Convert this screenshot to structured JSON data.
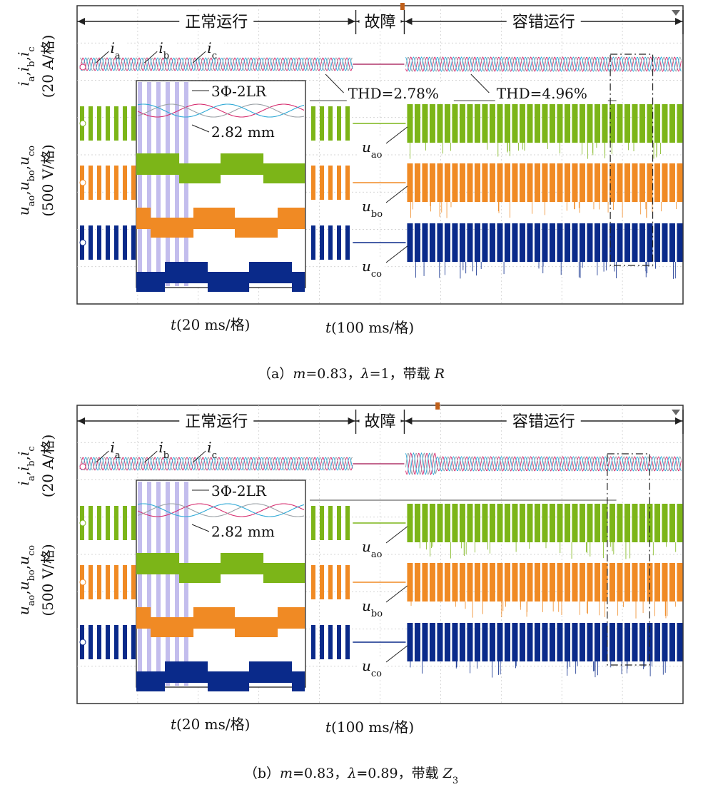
{
  "chart_data": [
    {
      "type": "line",
      "panel_label": "（a）",
      "caption": "m=0.83，λ=1，带载 R",
      "caption_parts": {
        "m": "0.83",
        "lambda": "1",
        "load_prefix": "带载",
        "load": "R",
        "load_sub": ""
      },
      "segments": [
        {
          "label": "正常运行",
          "x0": 0,
          "x1": 0.46
        },
        {
          "label": "故障",
          "x0": 0.46,
          "x1": 0.54
        },
        {
          "label": "容错运行",
          "x0": 0.54,
          "x1": 1.0
        }
      ],
      "trigger_x": 0.537,
      "time_scale_main": "t(100 ms/格)",
      "time_scale_inset": "t(20 ms/格)",
      "current_scale": "(20 A/格)",
      "voltage_scale": "(500 V/格)",
      "current_axis_label": "ia,ib,ic",
      "voltage_axis_label": "uao,ubo,uco",
      "series": [
        {
          "name": "ia",
          "color": "#d62d6f",
          "kind": "current"
        },
        {
          "name": "ib",
          "color": "#9aa0a6",
          "kind": "current"
        },
        {
          "name": "ic",
          "color": "#2fa9d6",
          "kind": "current"
        },
        {
          "name": "uao",
          "color": "#7cb518",
          "kind": "voltage"
        },
        {
          "name": "ubo",
          "color": "#f08a24",
          "kind": "voltage"
        },
        {
          "name": "uco",
          "color": "#0a2a8a",
          "kind": "voltage"
        }
      ],
      "annotations": {
        "thd_normal": "THD=2.78%",
        "thd_fault_tolerant": "THD=4.96%",
        "inset_top": "3Φ-2LR",
        "inset_mid": "2.82 mm"
      },
      "fault_extent": [
        0.455,
        0.54
      ],
      "zoom_box_x": [
        0.88,
        0.95
      ]
    },
    {
      "type": "line",
      "panel_label": "（b）",
      "caption": "m=0.83，λ=0.89，带载 Z3",
      "caption_parts": {
        "m": "0.83",
        "lambda": "0.89",
        "load_prefix": "带载",
        "load": "Z",
        "load_sub": "3"
      },
      "segments": [
        {
          "label": "正常运行",
          "x0": 0,
          "x1": 0.46
        },
        {
          "label": "故障",
          "x0": 0.46,
          "x1": 0.54
        },
        {
          "label": "容错运行",
          "x0": 0.54,
          "x1": 1.0
        }
      ],
      "trigger_x": 0.595,
      "time_scale_main": "t(100 ms/格)",
      "time_scale_inset": "t(20 ms/格)",
      "current_scale": "(20 A/格)",
      "voltage_scale": "(500 V/格)",
      "current_axis_label": "ia,ib,ic",
      "voltage_axis_label": "uao,ubo,uco",
      "series": [
        {
          "name": "ia",
          "color": "#d62d6f",
          "kind": "current"
        },
        {
          "name": "ib",
          "color": "#9aa0a6",
          "kind": "current"
        },
        {
          "name": "ic",
          "color": "#2fa9d6",
          "kind": "current"
        },
        {
          "name": "uao",
          "color": "#7cb518",
          "kind": "voltage"
        },
        {
          "name": "ubo",
          "color": "#f08a24",
          "kind": "voltage"
        },
        {
          "name": "uco",
          "color": "#0a2a8a",
          "kind": "voltage"
        }
      ],
      "annotations": {
        "thd_normal": "",
        "thd_fault_tolerant": "",
        "inset_top": "3Φ-2LR",
        "inset_mid": "2.82 mm"
      },
      "fault_extent": [
        0.455,
        0.54
      ],
      "zoom_box_x": [
        0.875,
        0.945
      ]
    }
  ]
}
